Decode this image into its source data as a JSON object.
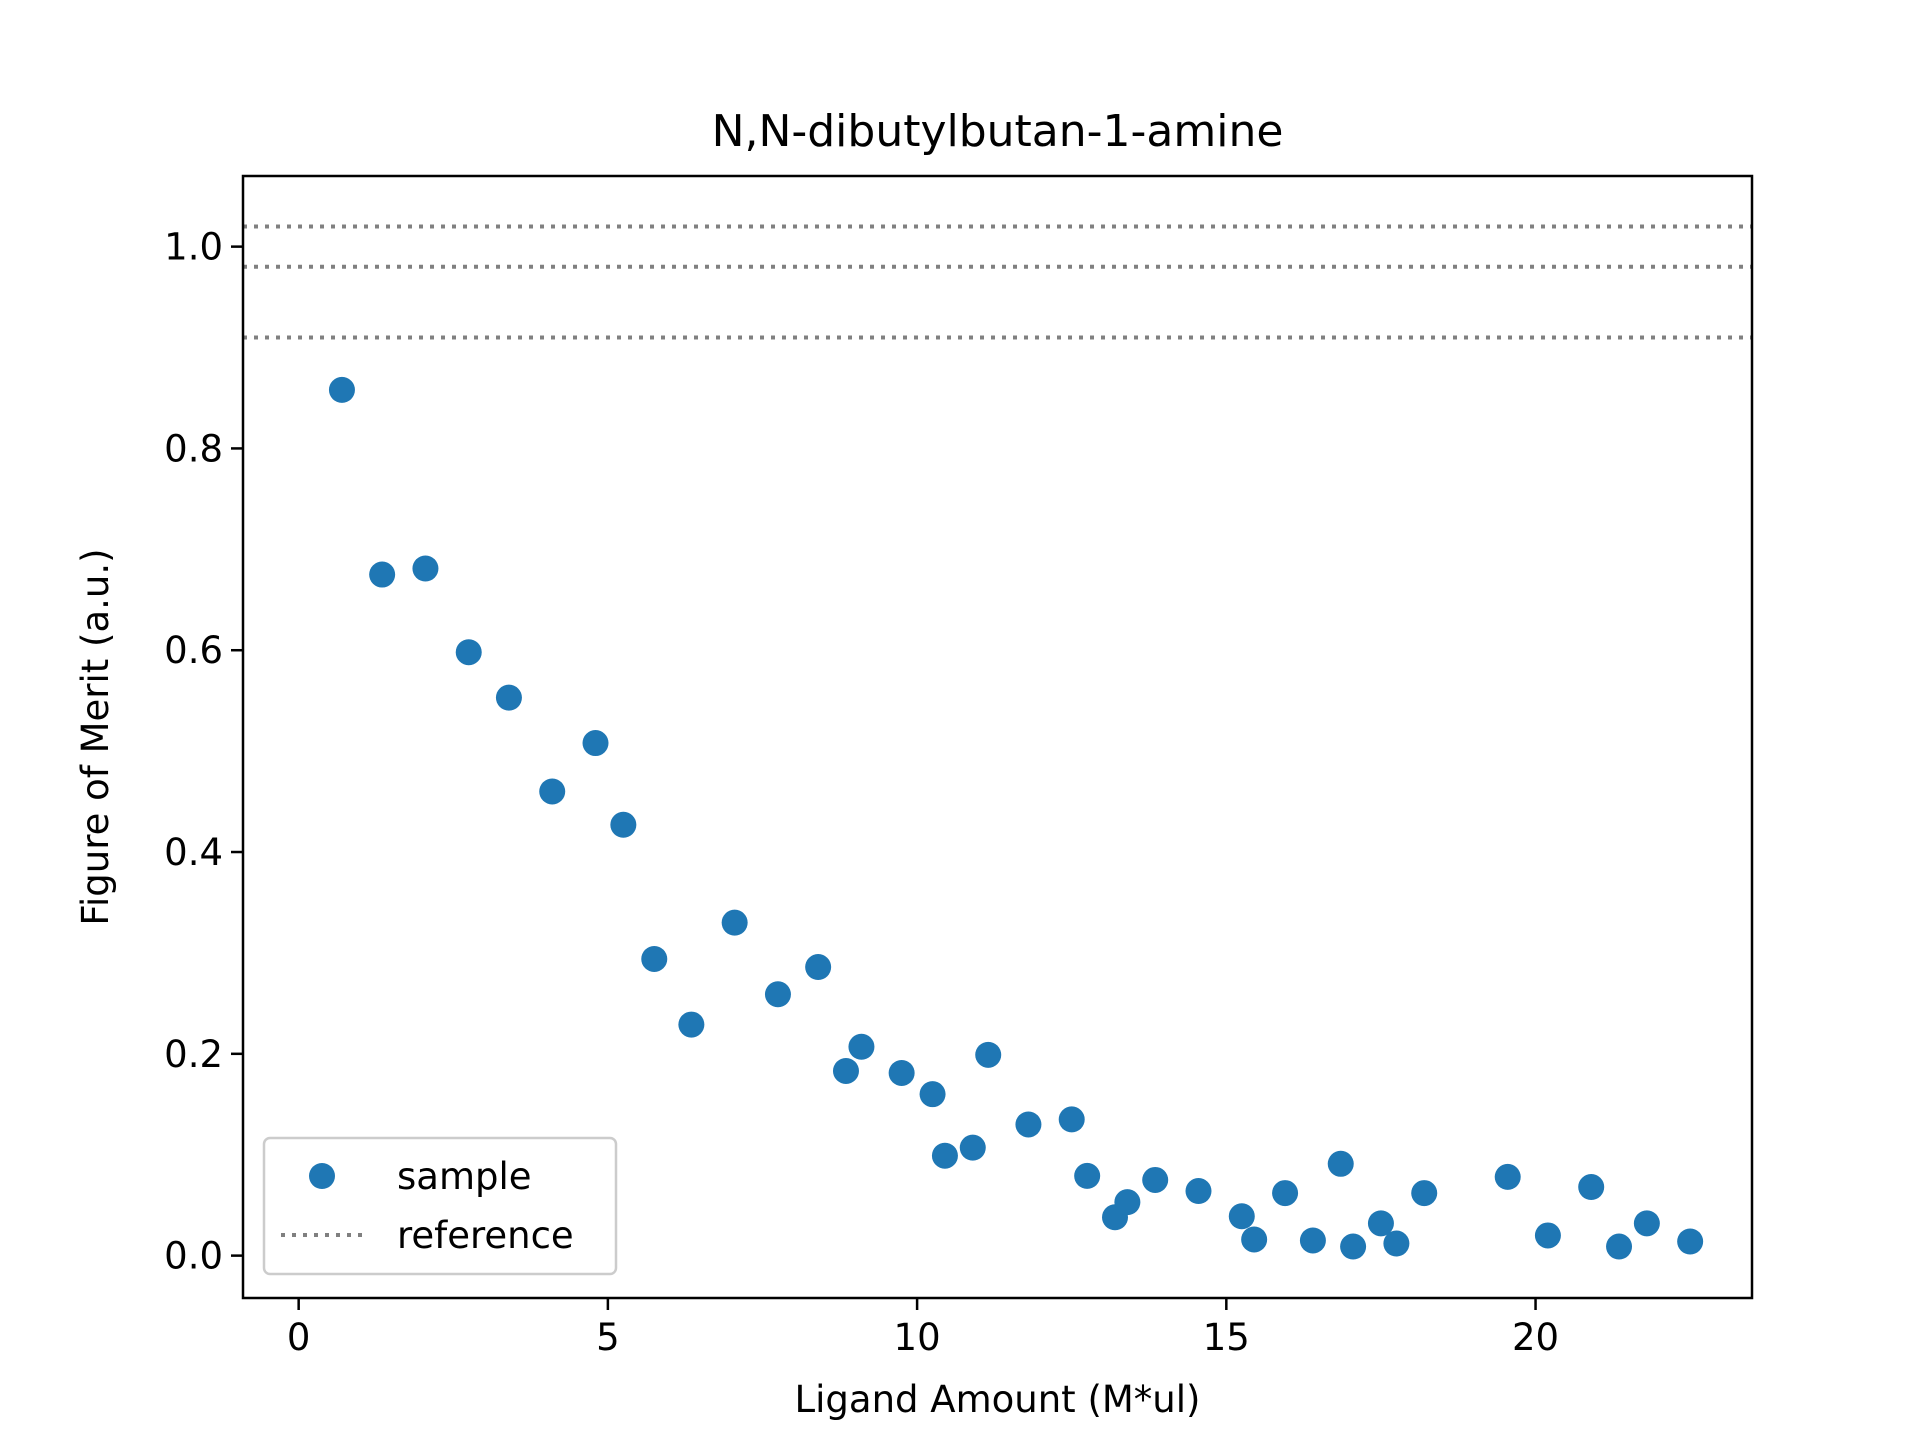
{
  "chart_data": {
    "type": "scatter",
    "title": "N,N-dibutylbutan-1-amine",
    "xlabel": "Ligand Amount (M*ul)",
    "ylabel": "Figure of Merit (a.u.)",
    "xlim": [
      -0.9,
      23.5
    ],
    "ylim": [
      -0.042,
      1.07
    ],
    "xticks": [
      0,
      5,
      10,
      15,
      20
    ],
    "yticks": [
      0.0,
      0.2,
      0.4,
      0.6,
      0.8,
      1.0
    ],
    "grid": false,
    "legend_position": "lower-left",
    "series": [
      {
        "name": "sample",
        "kind": "scatter",
        "color": "#1f77b4",
        "x": [
          0.7,
          1.35,
          2.05,
          2.75,
          3.4,
          4.1,
          4.8,
          5.25,
          5.75,
          6.35,
          7.05,
          7.75,
          8.4,
          8.85,
          9.1,
          9.75,
          10.25,
          10.45,
          10.9,
          11.15,
          11.8,
          12.5,
          12.75,
          13.2,
          13.4,
          13.85,
          14.55,
          15.25,
          15.45,
          15.95,
          16.4,
          16.85,
          17.05,
          17.5,
          17.75,
          18.2,
          19.55,
          20.2,
          20.9,
          21.35,
          21.8,
          22.5
        ],
        "y": [
          0.858,
          0.675,
          0.681,
          0.598,
          0.553,
          0.46,
          0.508,
          0.427,
          0.294,
          0.229,
          0.33,
          0.259,
          0.286,
          0.183,
          0.207,
          0.181,
          0.16,
          0.099,
          0.107,
          0.199,
          0.13,
          0.135,
          0.079,
          0.038,
          0.053,
          0.075,
          0.064,
          0.039,
          0.016,
          0.062,
          0.015,
          0.091,
          0.009,
          0.032,
          0.012,
          0.062,
          0.078,
          0.02,
          0.068,
          0.009,
          0.032,
          0.014
        ]
      },
      {
        "name": "reference",
        "kind": "hline",
        "style": "dotted",
        "color": "#808080",
        "y": [
          1.02,
          0.98,
          0.91
        ]
      }
    ]
  }
}
